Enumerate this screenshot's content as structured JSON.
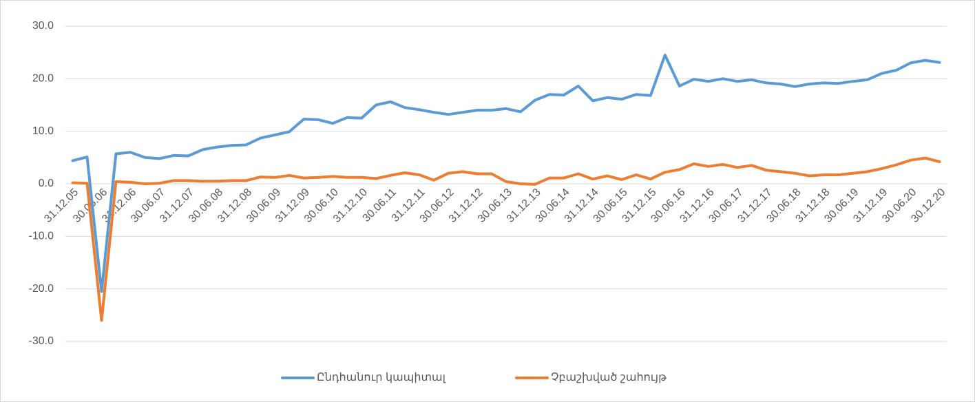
{
  "chart_data": {
    "type": "line",
    "categories": [
      "31.12.05",
      null,
      "30.06.06",
      null,
      "31.12.06",
      null,
      "30.06.07",
      null,
      "31.12.07",
      null,
      "30.06.08",
      null,
      "31.12.08",
      null,
      "30.06.09",
      null,
      "31.12.09",
      null,
      "30.06.10",
      null,
      "31.12.10",
      null,
      "30.06.11",
      null,
      "31.12.11",
      null,
      "30.06.12",
      null,
      "31.12.12",
      null,
      "30.06.13",
      null,
      "31.12.13",
      null,
      "30.06.14",
      null,
      "31.12.14",
      null,
      "30.06.15",
      null,
      "31.12.15",
      null,
      "30.06.16",
      null,
      "31.12.16",
      null,
      "30.06.17",
      null,
      "31.12.17",
      null,
      "30.06.18",
      null,
      "31.12.18",
      null,
      "30.06.19",
      null,
      "31.12.19",
      null,
      "30.06.20",
      null,
      "30.12.20"
    ],
    "series": [
      {
        "name": "Ընդհանուր կապիտալ",
        "color": "#5b9bd5",
        "values": [
          4.4,
          5.1,
          -20.5,
          5.7,
          6.0,
          5.0,
          4.8,
          5.4,
          5.3,
          6.5,
          7.0,
          7.3,
          7.4,
          8.7,
          9.3,
          9.9,
          12.3,
          12.2,
          11.5,
          12.6,
          12.5,
          15.0,
          15.6,
          14.5,
          14.1,
          13.6,
          13.2,
          13.6,
          14.0,
          14.0,
          14.3,
          13.7,
          15.9,
          17.0,
          16.9,
          18.6,
          15.8,
          16.4,
          16.1,
          17.0,
          16.8,
          24.5,
          18.6,
          19.9,
          19.5,
          20.0,
          19.5,
          19.8,
          19.2,
          19.0,
          18.5,
          19.0,
          19.2,
          19.1,
          19.5,
          19.8,
          21.0,
          21.6,
          23.0,
          23.5,
          23.1
        ]
      },
      {
        "name": "Չբաշխված շահույթ",
        "color": "#ed7d31",
        "values": [
          0.2,
          0.1,
          -26.0,
          0.4,
          0.3,
          0.0,
          0.1,
          0.6,
          0.6,
          0.5,
          0.5,
          0.6,
          0.6,
          1.3,
          1.2,
          1.6,
          1.1,
          1.2,
          1.4,
          1.2,
          1.2,
          1.0,
          1.6,
          2.1,
          1.7,
          0.7,
          2.0,
          2.3,
          1.9,
          1.9,
          0.4,
          0.0,
          -0.1,
          1.1,
          1.1,
          1.9,
          0.9,
          1.5,
          0.8,
          1.7,
          0.9,
          2.2,
          2.7,
          3.8,
          3.3,
          3.7,
          3.1,
          3.5,
          2.6,
          2.3,
          2.0,
          1.5,
          1.7,
          1.7,
          2.0,
          2.3,
          2.9,
          3.6,
          4.5,
          4.9,
          4.2
        ]
      }
    ],
    "ylim": [
      -30,
      30
    ],
    "yticks": [
      {
        "value": -30,
        "label": "-30.0"
      },
      {
        "value": -20,
        "label": "-20.0"
      },
      {
        "value": -10,
        "label": "-10.0"
      },
      {
        "value": 0,
        "label": "0.0"
      },
      {
        "value": 10,
        "label": "10.0"
      },
      {
        "value": 20,
        "label": "20.0"
      },
      {
        "value": 30,
        "label": "30.0"
      }
    ],
    "grid": true,
    "legend": "bottom"
  }
}
